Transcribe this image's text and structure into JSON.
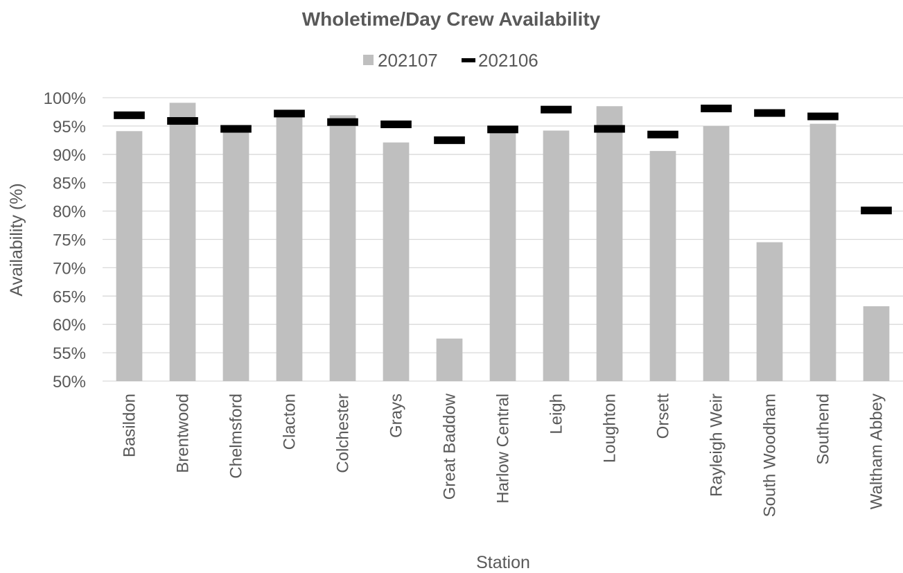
{
  "chart_data": {
    "type": "bar",
    "title": "Wholetime/Day Crew Availability",
    "xlabel": "Station",
    "ylabel": "Availability (%)",
    "ylim": [
      50,
      100
    ],
    "ytick_step": 5,
    "grid": true,
    "legend_position": "top",
    "categories": [
      "Basildon",
      "Brentwood",
      "Chelmsford",
      "Clacton",
      "Colchester",
      "Grays",
      "Great Baddow",
      "Harlow Central",
      "Leigh",
      "Loughton",
      "Orsett",
      "Rayleigh Weir",
      "South Woodham",
      "Southend",
      "Waltham Abbey"
    ],
    "series": [
      {
        "name": "202107",
        "mark": "bar",
        "color": "#bfbfbf",
        "values": [
          94.1,
          99.1,
          94.2,
          97.0,
          96.9,
          92.1,
          57.5,
          94.2,
          94.2,
          98.5,
          90.6,
          95.0,
          74.5,
          95.4,
          63.2
        ]
      },
      {
        "name": "202106",
        "mark": "dash",
        "color": "#000000",
        "values": [
          96.9,
          95.9,
          94.5,
          97.2,
          95.7,
          95.3,
          92.5,
          94.4,
          97.9,
          94.5,
          93.5,
          98.1,
          97.3,
          96.7,
          80.1
        ]
      }
    ]
  }
}
